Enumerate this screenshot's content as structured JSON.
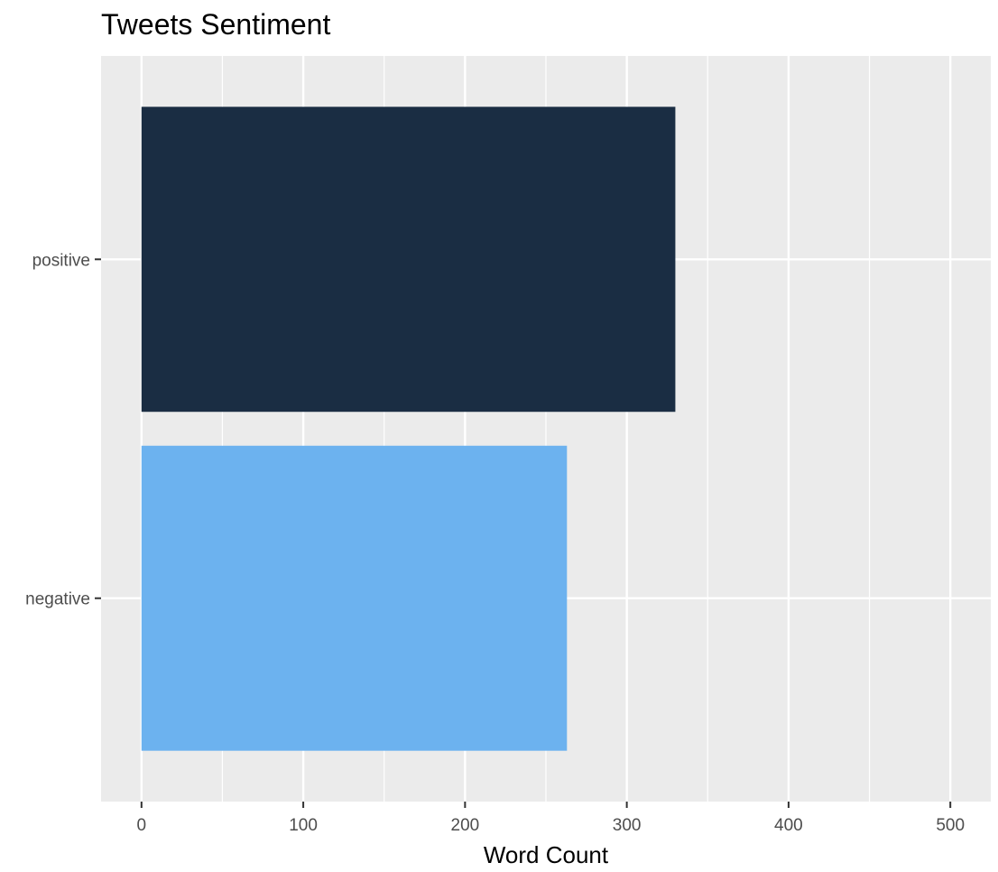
{
  "chart_data": {
    "type": "bar",
    "orientation": "horizontal",
    "title": "Tweets Sentiment",
    "xlabel": "Word Count",
    "ylabel": "",
    "categories": [
      "negative",
      "positive"
    ],
    "values": [
      263,
      330
    ],
    "colors": [
      "#6cb2ef",
      "#1a2d43"
    ],
    "xlim": [
      -25,
      525
    ],
    "x_major_ticks": [
      0,
      100,
      200,
      300,
      400,
      500
    ],
    "x_tick_labels": [
      "0",
      "100",
      "200",
      "300",
      "400",
      "500"
    ],
    "x_minor_ticks": [
      50,
      150,
      250,
      350,
      450
    ],
    "grid": true,
    "panel_background": "#ebebeb",
    "grid_color": "#ffffff",
    "legend": "none"
  }
}
